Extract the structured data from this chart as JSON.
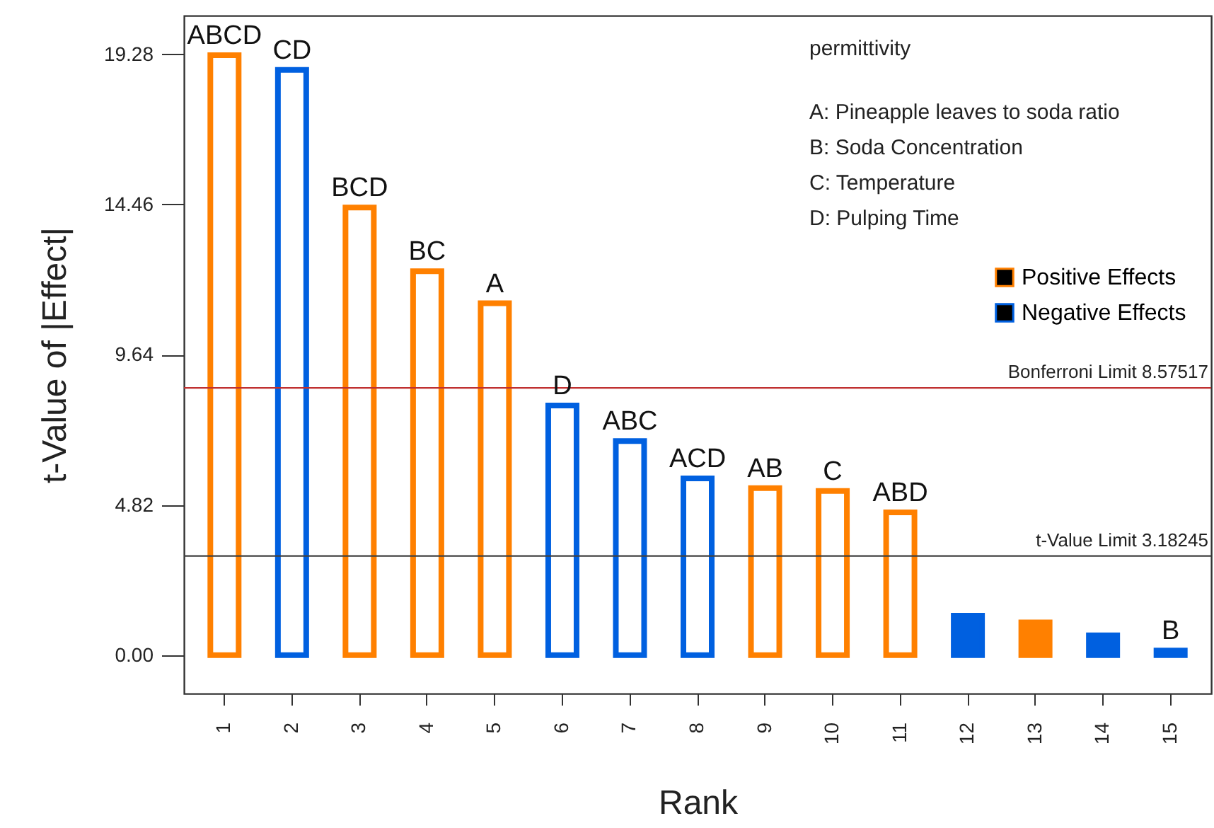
{
  "chart_data": {
    "type": "bar",
    "xlabel": "Rank",
    "ylabel": "t-Value of |Effect|",
    "categories": [
      "1",
      "2",
      "3",
      "4",
      "5",
      "6",
      "7",
      "8",
      "9",
      "10",
      "11",
      "12",
      "13",
      "14",
      "15"
    ],
    "series": [
      {
        "name": "Positive Effects",
        "color": "#ff8000",
        "values": [
          19.25,
          null,
          14.36,
          12.32,
          11.29,
          null,
          null,
          null,
          5.36,
          5.27,
          4.58,
          null,
          1.05,
          null,
          null
        ]
      },
      {
        "name": "Negative Effects",
        "color": "#0060e0",
        "values": [
          null,
          18.78,
          null,
          null,
          null,
          8.01,
          6.87,
          5.67,
          null,
          null,
          null,
          1.27,
          null,
          0.64,
          0.15
        ]
      }
    ],
    "ylim": [
      -1.23,
      20.52
    ],
    "yticks": [
      {
        "value": 0,
        "label": "0.00"
      },
      4.82,
      9.64,
      14.46,
      19.28
    ],
    "ref_lines": [
      {
        "axis": "y",
        "value": 8.57517,
        "label": "Bonferroni Limit 8.57517",
        "color": "#c03030"
      },
      {
        "axis": "y",
        "value": 3.18245,
        "label": "t-Value Limit 3.18245",
        "color": "#404040"
      }
    ],
    "annotations": [
      "permittivity",
      "A: Pineapple leaves to soda ratio",
      "B: Soda Concentration",
      "C: Temperature",
      "D: Pulping Time",
      {
        "text": "ABCD",
        "x": "1",
        "y": 19.25
      },
      {
        "text": "CD",
        "x": "2",
        "y": 18.78
      },
      {
        "text": "BCD",
        "x": "3",
        "y": 14.36
      },
      {
        "text": "BC",
        "x": "4",
        "y": 12.32
      },
      {
        "text": "A",
        "x": "5",
        "y": 11.29
      },
      {
        "text": "D",
        "x": "6",
        "y": 8.01
      },
      {
        "text": "ABC",
        "x": "7",
        "y": 6.87
      },
      {
        "text": "ACD",
        "x": "8",
        "y": 5.67
      },
      {
        "text": "AB",
        "x": "9",
        "y": 5.36
      },
      {
        "text": "C",
        "x": "10",
        "y": 5.27
      },
      {
        "text": "ABD",
        "x": "11",
        "y": 4.58
      },
      {
        "text": "B",
        "x": "15",
        "y": 0.15
      }
    ],
    "legend": "top right"
  }
}
